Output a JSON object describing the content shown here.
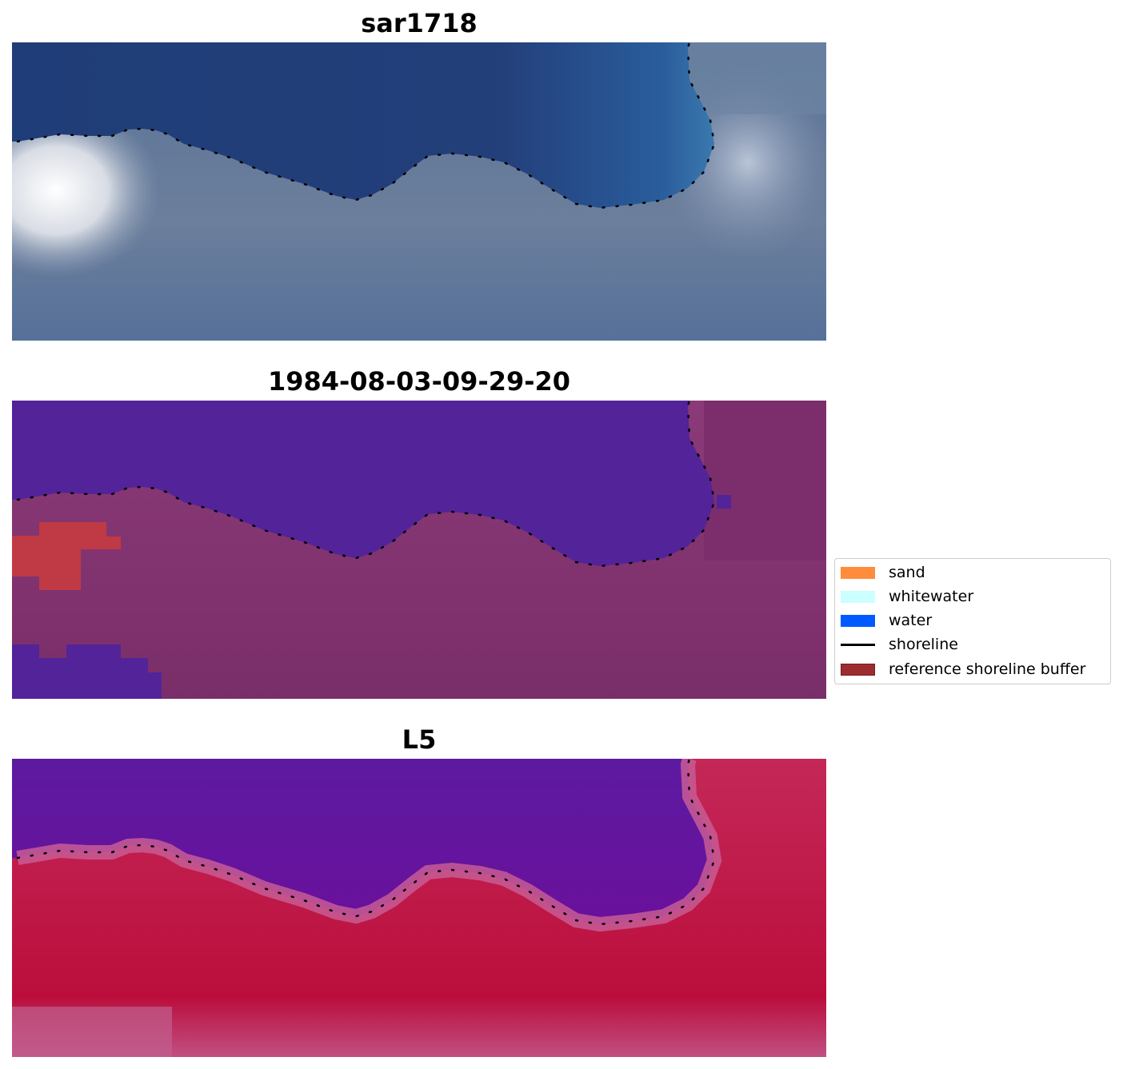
{
  "panels": [
    {
      "title": "sar1718",
      "kind": "rgb"
    },
    {
      "title": "1984-08-03-09-29-20",
      "kind": "classified"
    },
    {
      "title": "L5",
      "kind": "index"
    }
  ],
  "legend": {
    "items": [
      {
        "label": "sand",
        "color": "#ff8c3c"
      },
      {
        "label": "whitewater",
        "color": "#ccffff"
      },
      {
        "label": "water",
        "color": "#005aff"
      },
      {
        "label": "shoreline",
        "color": "#000000"
      },
      {
        "label": "reference shoreline buffer",
        "color": "#9b2d30"
      }
    ]
  }
}
